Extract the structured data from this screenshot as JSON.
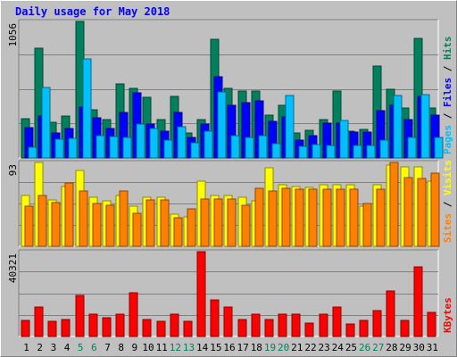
{
  "chart_data": {
    "title": "Daily usage for May 2018",
    "type": "bar",
    "days": [
      "1",
      "2",
      "3",
      "4",
      "5",
      "6",
      "7",
      "8",
      "9",
      "10",
      "11",
      "12",
      "13",
      "14",
      "15",
      "16",
      "17",
      "18",
      "19",
      "20",
      "21",
      "22",
      "23",
      "24",
      "25",
      "26",
      "27",
      "28",
      "29",
      "30",
      "31"
    ],
    "weekend_days": [
      "5",
      "6",
      "12",
      "13",
      "19",
      "20",
      "26",
      "27"
    ],
    "colors": {
      "hits": "#00805c",
      "files": "#0000ff",
      "pages": "#00c0ff",
      "visits": "#ffff00",
      "sites": "#ff8000",
      "kbytes": "#ff0000",
      "weekday_label": "#000000",
      "weekend_label": "#00805c",
      "title": "#0000ff"
    },
    "panels": [
      {
        "ytick": "1056",
        "legend": [
          {
            "text": "Pages",
            "color": "#00c0ff"
          },
          {
            "text": " / ",
            "color": "#000000"
          },
          {
            "text": "Files",
            "color": "#0000ff"
          },
          {
            "text": " / ",
            "color": "#000000"
          },
          {
            "text": "Hits",
            "color": "#00805c"
          }
        ],
        "ymax": 1056,
        "series": [
          {
            "name": "Hits",
            "values": [
              305,
              850,
              275,
              325,
              1056,
              370,
              295,
              575,
              540,
              470,
              295,
              475,
              190,
              300,
              915,
              540,
              515,
              520,
              330,
              405,
              190,
              215,
              300,
              515,
              210,
              220,
              710,
              530,
              385,
              925,
              385
            ]
          },
          {
            "name": "Files",
            "values": [
              235,
              325,
              195,
              230,
              395,
              310,
              225,
              355,
              505,
              265,
              205,
              355,
              160,
              260,
              625,
              410,
              425,
              440,
              280,
              320,
              140,
              170,
              270,
              270,
              200,
              200,
              365,
              410,
              300,
              475,
              330
            ]
          },
          {
            "name": "Pages",
            "values": [
              85,
              545,
              145,
              150,
              765,
              175,
              165,
              160,
              265,
              225,
              140,
              240,
              115,
              205,
              510,
              175,
              160,
              175,
              110,
              485,
              90,
              105,
              100,
              290,
              100,
              100,
              140,
              480,
              160,
              490,
              160
            ]
          }
        ]
      },
      {
        "ytick": "93",
        "legend": [
          {
            "text": "Sites",
            "color": "#ff8000"
          },
          {
            "text": " / ",
            "color": "#000000"
          },
          {
            "text": "Visits",
            "color": "#ffff00"
          }
        ],
        "ymax": 93,
        "series": [
          {
            "name": "Visits",
            "values": [
              56,
              93,
              51,
              66,
              84,
              54,
              50,
              56,
              45,
              54,
              54,
              36,
              33,
              72,
              56,
              56,
              54,
              50,
              87,
              68,
              66,
              65,
              68,
              68,
              68,
              45,
              68,
              90,
              88,
              88,
              72
            ]
          },
          {
            "name": "Sites",
            "values": [
              45,
              56,
              48,
              70,
              61,
              47,
              46,
              61,
              37,
              51,
              51,
              32,
              42,
              52,
              52,
              52,
              46,
              64,
              61,
              64,
              63,
              63,
              63,
              63,
              63,
              47,
              63,
              93,
              76,
              75,
              81
            ]
          }
        ]
      },
      {
        "ytick": "40321",
        "legend": [
          {
            "text": "KBytes",
            "color": "#ff0000"
          }
        ],
        "ymax": 40321,
        "series": [
          {
            "name": "KBytes",
            "values": [
              7800,
              13800,
              7200,
              8200,
              19500,
              10400,
              8900,
              10400,
              21000,
              8200,
              7400,
              10400,
              7300,
              40321,
              17500,
              14100,
              8200,
              10400,
              8200,
              10800,
              10600,
              6200,
              10400,
              13800,
              6000,
              7700,
              12200,
              21500,
              7600,
              33300,
              11300
            ]
          }
        ]
      }
    ]
  }
}
